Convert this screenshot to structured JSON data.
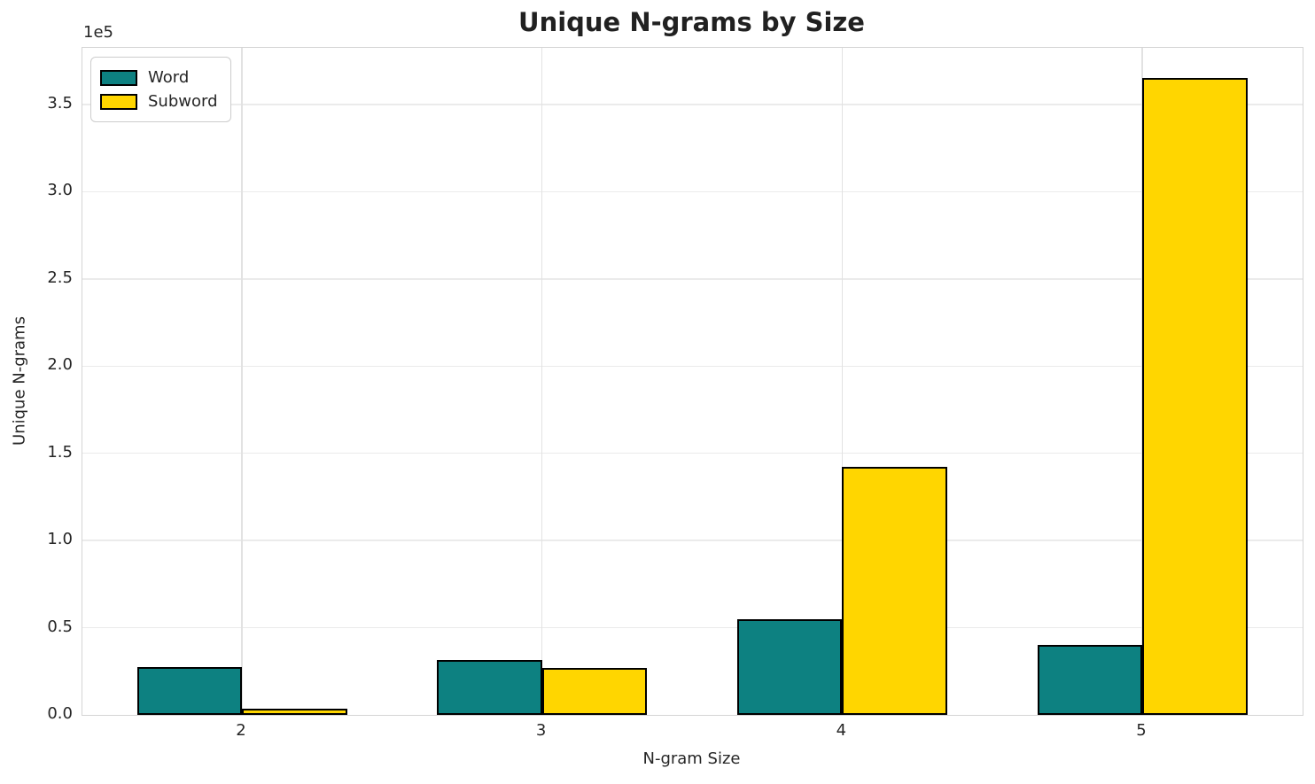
{
  "title": "Unique N-grams by Size",
  "chart_data": {
    "type": "bar",
    "title": "Unique N-grams by Size",
    "categories": [
      "2",
      "3",
      "4",
      "5"
    ],
    "series": [
      {
        "name": "Word",
        "color": "#0d8181",
        "values": [
          27500,
          31500,
          55000,
          40000
        ]
      },
      {
        "name": "Subword",
        "color": "#ffd600",
        "values": [
          3500,
          27000,
          142000,
          365000
        ]
      }
    ],
    "xlabel": "N-gram Size",
    "ylabel": "Unique N-grams",
    "offset_label": "1e5",
    "ylim": [
      0,
      382500
    ],
    "yticks": [
      0,
      50000,
      100000,
      150000,
      200000,
      250000,
      300000,
      350000
    ],
    "ytick_labels": [
      "0.0",
      "0.5",
      "1.0",
      "1.5",
      "2.0",
      "2.5",
      "3.0",
      "3.5"
    ],
    "grid": true,
    "legend_position": "upper-left",
    "bar_edge_color": "#000000",
    "bar_edge_width": 2
  }
}
